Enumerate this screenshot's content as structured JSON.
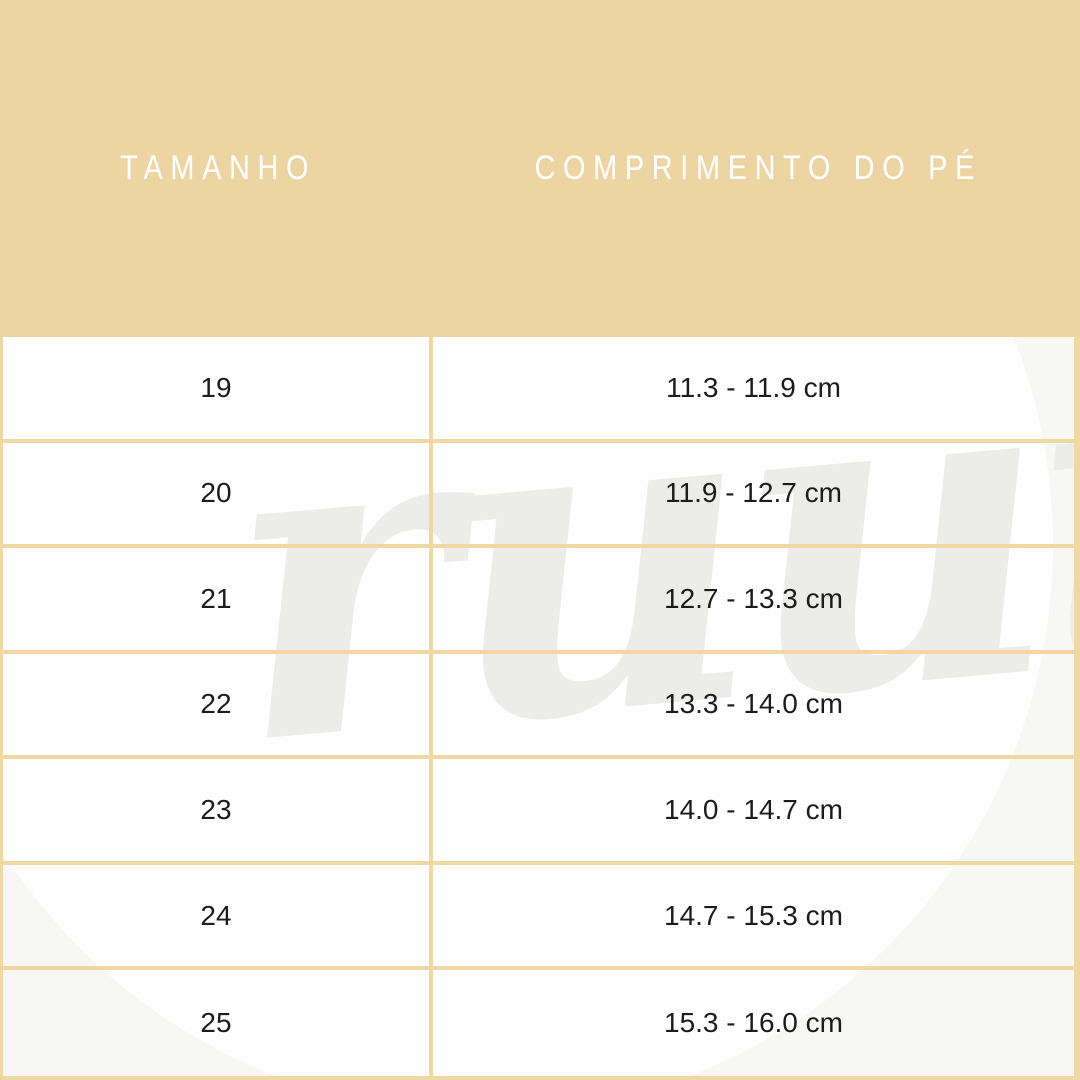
{
  "theme": {
    "background": "#ecd5a3",
    "grid_line": "#f0d8a4",
    "cell_background": "#f7f7f5",
    "circle_highlight": "#fefefe",
    "header_text_color": "#ffffff",
    "cell_text_color": "#1c1c1c",
    "watermark_color": "#ecede9"
  },
  "header": {
    "size_column": "TAMANHO",
    "length_column": "COMPRIMENTO DO PÉ"
  },
  "watermark": {
    "text": "ruut"
  },
  "chart_data": {
    "type": "table",
    "columns": [
      "TAMANHO",
      "COMPRIMENTO DO PÉ"
    ],
    "rows": [
      {
        "size": "19",
        "length": "11.3 - 11.9 cm"
      },
      {
        "size": "20",
        "length": "11.9 - 12.7 cm"
      },
      {
        "size": "21",
        "length": "12.7 - 13.3 cm"
      },
      {
        "size": "22",
        "length": "13.3 - 14.0 cm"
      },
      {
        "size": "23",
        "length": "14.0 - 14.7 cm"
      },
      {
        "size": "24",
        "length": "14.7 - 15.3 cm"
      },
      {
        "size": "25",
        "length": "15.3 - 16.0 cm"
      }
    ]
  }
}
